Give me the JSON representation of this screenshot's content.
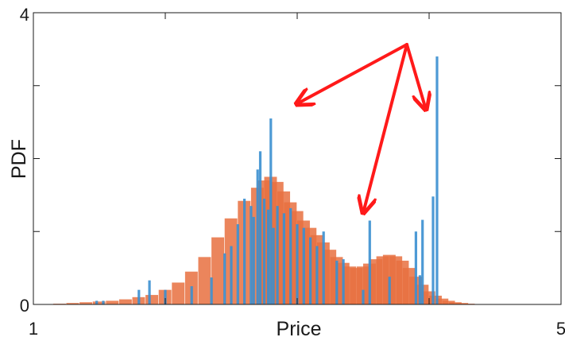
{
  "chart_data": {
    "type": "bar",
    "title": "",
    "xlabel": "Price",
    "ylabel": "PDF",
    "xlim": [
      1,
      5
    ],
    "ylim": [
      0,
      4
    ],
    "x_tick_labels": [
      "1",
      "5"
    ],
    "y_tick_labels": [
      "0",
      "4"
    ],
    "grid": false,
    "legend": "none",
    "colors": {
      "empirical": "#3a8fd0",
      "simulated": "#e8703f",
      "arrows": "#ff1a1a",
      "axes": "#1a1a1a"
    },
    "series": [
      {
        "x": [
          1.2,
          1.3,
          1.4,
          1.5,
          1.6,
          1.7,
          1.8,
          1.9,
          2.0,
          2.1,
          2.2,
          2.3,
          2.4,
          2.5,
          2.6,
          2.7,
          2.75,
          2.8,
          2.85,
          2.9,
          2.95,
          3.0,
          3.05,
          3.1,
          3.15,
          3.2,
          3.25,
          3.3,
          3.35,
          3.4,
          3.45,
          3.5,
          3.55,
          3.6,
          3.65,
          3.7,
          3.75,
          3.8,
          3.85,
          3.9,
          3.95,
          4.0,
          4.05,
          4.1,
          4.15,
          4.2,
          4.25,
          4.3,
          4.4,
          4.5,
          4.6,
          4.7
        ],
        "values": [
          0.01,
          0.02,
          0.03,
          0.04,
          0.05,
          0.07,
          0.1,
          0.13,
          0.2,
          0.3,
          0.45,
          0.65,
          0.92,
          1.18,
          1.42,
          1.6,
          1.7,
          1.75,
          1.68,
          1.55,
          1.4,
          1.28,
          1.15,
          1.05,
          0.95,
          0.85,
          0.75,
          0.65,
          0.57,
          0.52,
          0.5,
          0.52,
          0.56,
          0.62,
          0.66,
          0.68,
          0.66,
          0.6,
          0.5,
          0.38,
          0.27,
          0.18,
          0.12,
          0.08,
          0.05,
          0.03,
          0.02,
          0.01,
          0.005,
          0.0,
          0.0,
          0.0
        ]
      },
      {
        "x": [
          1.48,
          1.53,
          1.8,
          1.88,
          2.0,
          2.2,
          2.35,
          2.45,
          2.5,
          2.55,
          2.6,
          2.65,
          2.67,
          2.7,
          2.72,
          2.75,
          2.78,
          2.8,
          2.82,
          2.85,
          2.9,
          2.95,
          3.0,
          3.05,
          3.1,
          3.15,
          3.2,
          3.3,
          3.35,
          3.5,
          3.55,
          3.7,
          3.9,
          3.93,
          3.95,
          4.03,
          4.06
        ],
        "values": [
          0.05,
          0.05,
          0.2,
          0.33,
          0.2,
          0.25,
          0.37,
          0.7,
          0.8,
          1.1,
          1.45,
          1.35,
          1.2,
          1.85,
          2.1,
          1.45,
          1.3,
          2.55,
          1.05,
          1.35,
          1.25,
          1.32,
          1.1,
          1.05,
          0.92,
          0.8,
          1.0,
          0.6,
          0.62,
          0.2,
          1.15,
          0.38,
          1.0,
          0.4,
          1.16,
          1.48,
          3.4
        ]
      }
    ],
    "notes": ""
  }
}
